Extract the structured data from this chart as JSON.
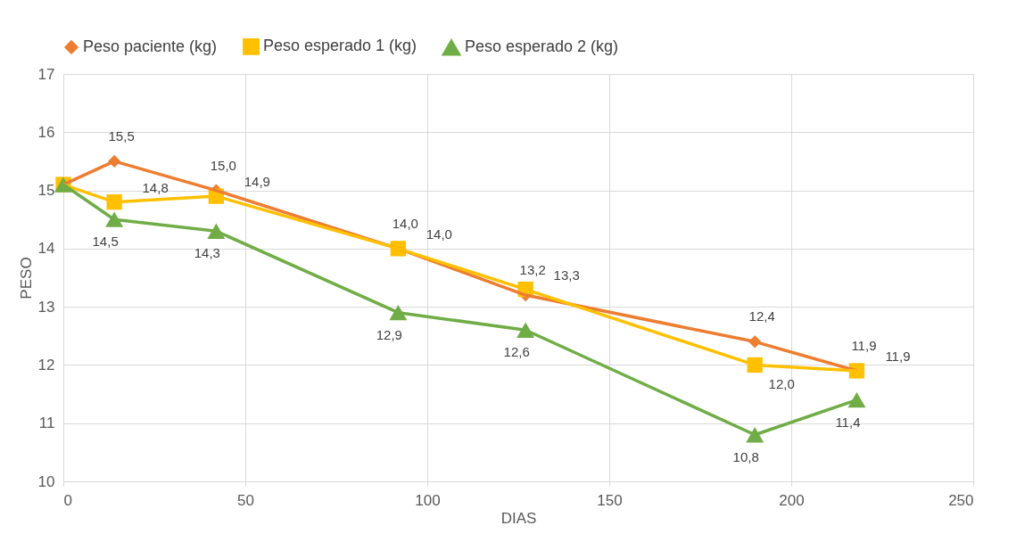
{
  "chart_data": {
    "type": "line",
    "xlabel": "DIAS",
    "ylabel": "PESO",
    "x": [
      0,
      14,
      42,
      92,
      127,
      190,
      218
    ],
    "xlim": [
      0,
      250
    ],
    "xticks": [
      0,
      50,
      100,
      150,
      200,
      250
    ],
    "ylim": [
      10,
      17
    ],
    "yticks": [
      10,
      11,
      12,
      13,
      14,
      15,
      16,
      17
    ],
    "grid": true,
    "legend": "top",
    "series": [
      {
        "name": "Peso paciente (kg)",
        "color": "#ed7d31",
        "marker": "diamond",
        "values": [
          15.1,
          15.5,
          15.0,
          14.0,
          13.2,
          12.4,
          11.9
        ],
        "value_labels": [
          null,
          "15,5",
          "15,0",
          "14,0",
          "13,2",
          "12,4",
          "11,9"
        ]
      },
      {
        "name": "Peso esperado 1 (kg)",
        "color": "#ffc000",
        "marker": "square",
        "values": [
          15.1,
          14.8,
          14.9,
          14.0,
          13.3,
          12.0,
          11.9
        ],
        "value_labels": [
          null,
          "14,8",
          "14,9",
          "14,0",
          "13,3",
          "12,0",
          "11,9"
        ]
      },
      {
        "name": "Peso esperado 2 (kg)",
        "color": "#70ad47",
        "marker": "triangle",
        "values": [
          15.1,
          14.5,
          14.3,
          12.9,
          12.6,
          10.8,
          11.4
        ],
        "value_labels": [
          null,
          "14,5",
          "14,3",
          "12,9",
          "12,6",
          "10,8",
          "11,4"
        ]
      }
    ]
  }
}
